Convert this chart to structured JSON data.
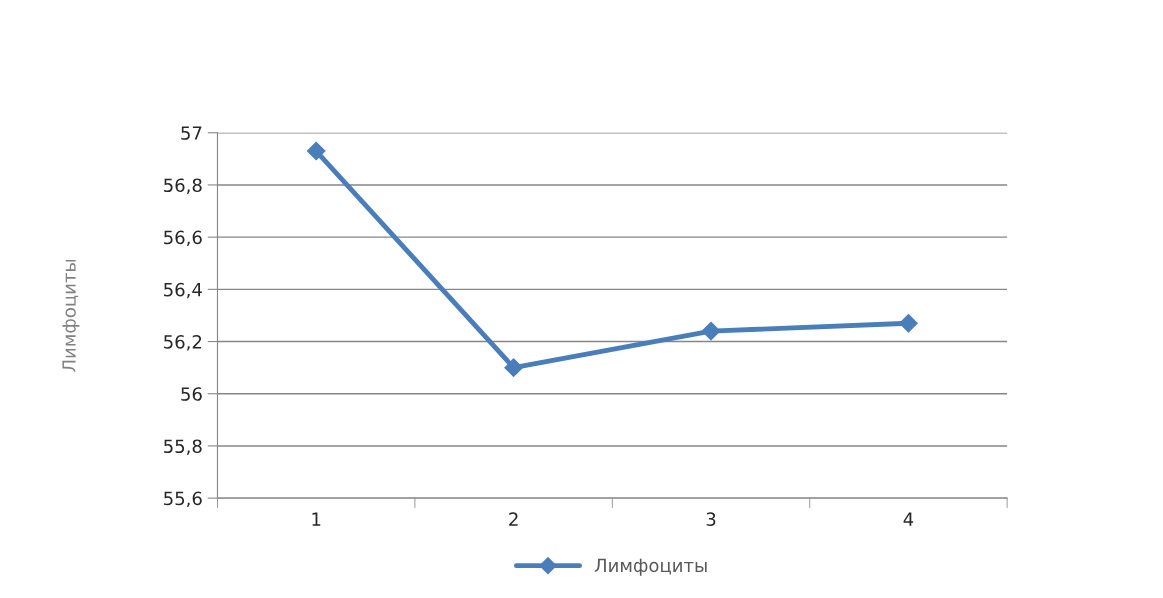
{
  "chart_data": {
    "type": "line",
    "ylabel": "Лимфоциты",
    "categories": [
      "1",
      "2",
      "3",
      "4"
    ],
    "series": [
      {
        "name": "Лимфоциты",
        "color": "#4a7ebb",
        "values": [
          56.93,
          56.1,
          56.24,
          56.27
        ]
      }
    ],
    "ylim": [
      55.6,
      57
    ],
    "yticks": [
      {
        "value": 55.6,
        "label": "55,6"
      },
      {
        "value": 55.8,
        "label": "55,8"
      },
      56,
      {
        "value": 56.2,
        "label": "56,2"
      },
      {
        "value": 56.4,
        "label": "56,4"
      },
      {
        "value": 56.6,
        "label": "56,6"
      },
      {
        "value": 56.8,
        "label": "56,8"
      },
      57
    ],
    "grid": "y",
    "legend": "bottom",
    "marker": "diamond",
    "line_style": "solid"
  }
}
